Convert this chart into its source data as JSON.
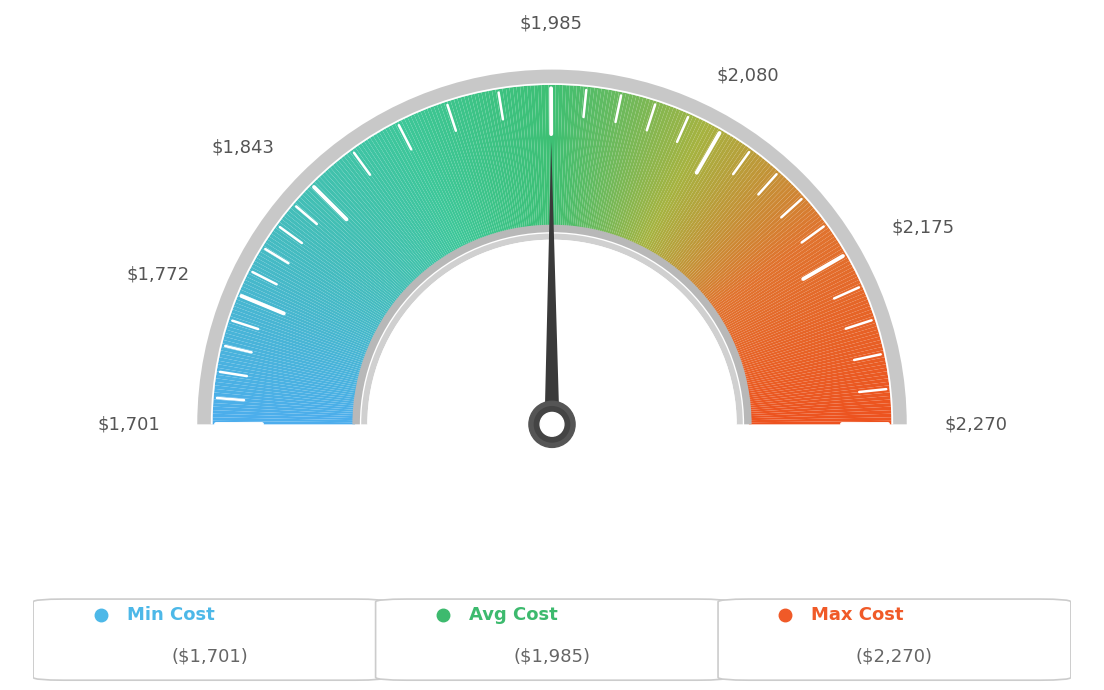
{
  "min_val": 1701,
  "max_val": 2270,
  "avg_val": 1985,
  "tick_labels": [
    "$1,701",
    "$1,772",
    "$1,843",
    "$1,985",
    "$2,080",
    "$2,175",
    "$2,270"
  ],
  "tick_values": [
    1701,
    1772,
    1843,
    1985,
    2080,
    2175,
    2270
  ],
  "minor_tick_count": 4,
  "legend": [
    {
      "label": "Min Cost",
      "value": "($1,701)",
      "color": "#4db8e8"
    },
    {
      "label": "Avg Cost",
      "value": "($1,985)",
      "color": "#3dba6e"
    },
    {
      "label": "Max Cost",
      "value": "($2,270)",
      "color": "#f05a28"
    }
  ],
  "bg_color": "#ffffff",
  "needle_value": 1985,
  "color_stops": [
    [
      0.0,
      [
        0.3,
        0.68,
        0.93
      ]
    ],
    [
      0.35,
      [
        0.24,
        0.78,
        0.6
      ]
    ],
    [
      0.5,
      [
        0.24,
        0.75,
        0.45
      ]
    ],
    [
      0.65,
      [
        0.65,
        0.7,
        0.25
      ]
    ],
    [
      0.8,
      [
        0.88,
        0.45,
        0.18
      ]
    ],
    [
      1.0,
      [
        0.93,
        0.32,
        0.12
      ]
    ]
  ]
}
